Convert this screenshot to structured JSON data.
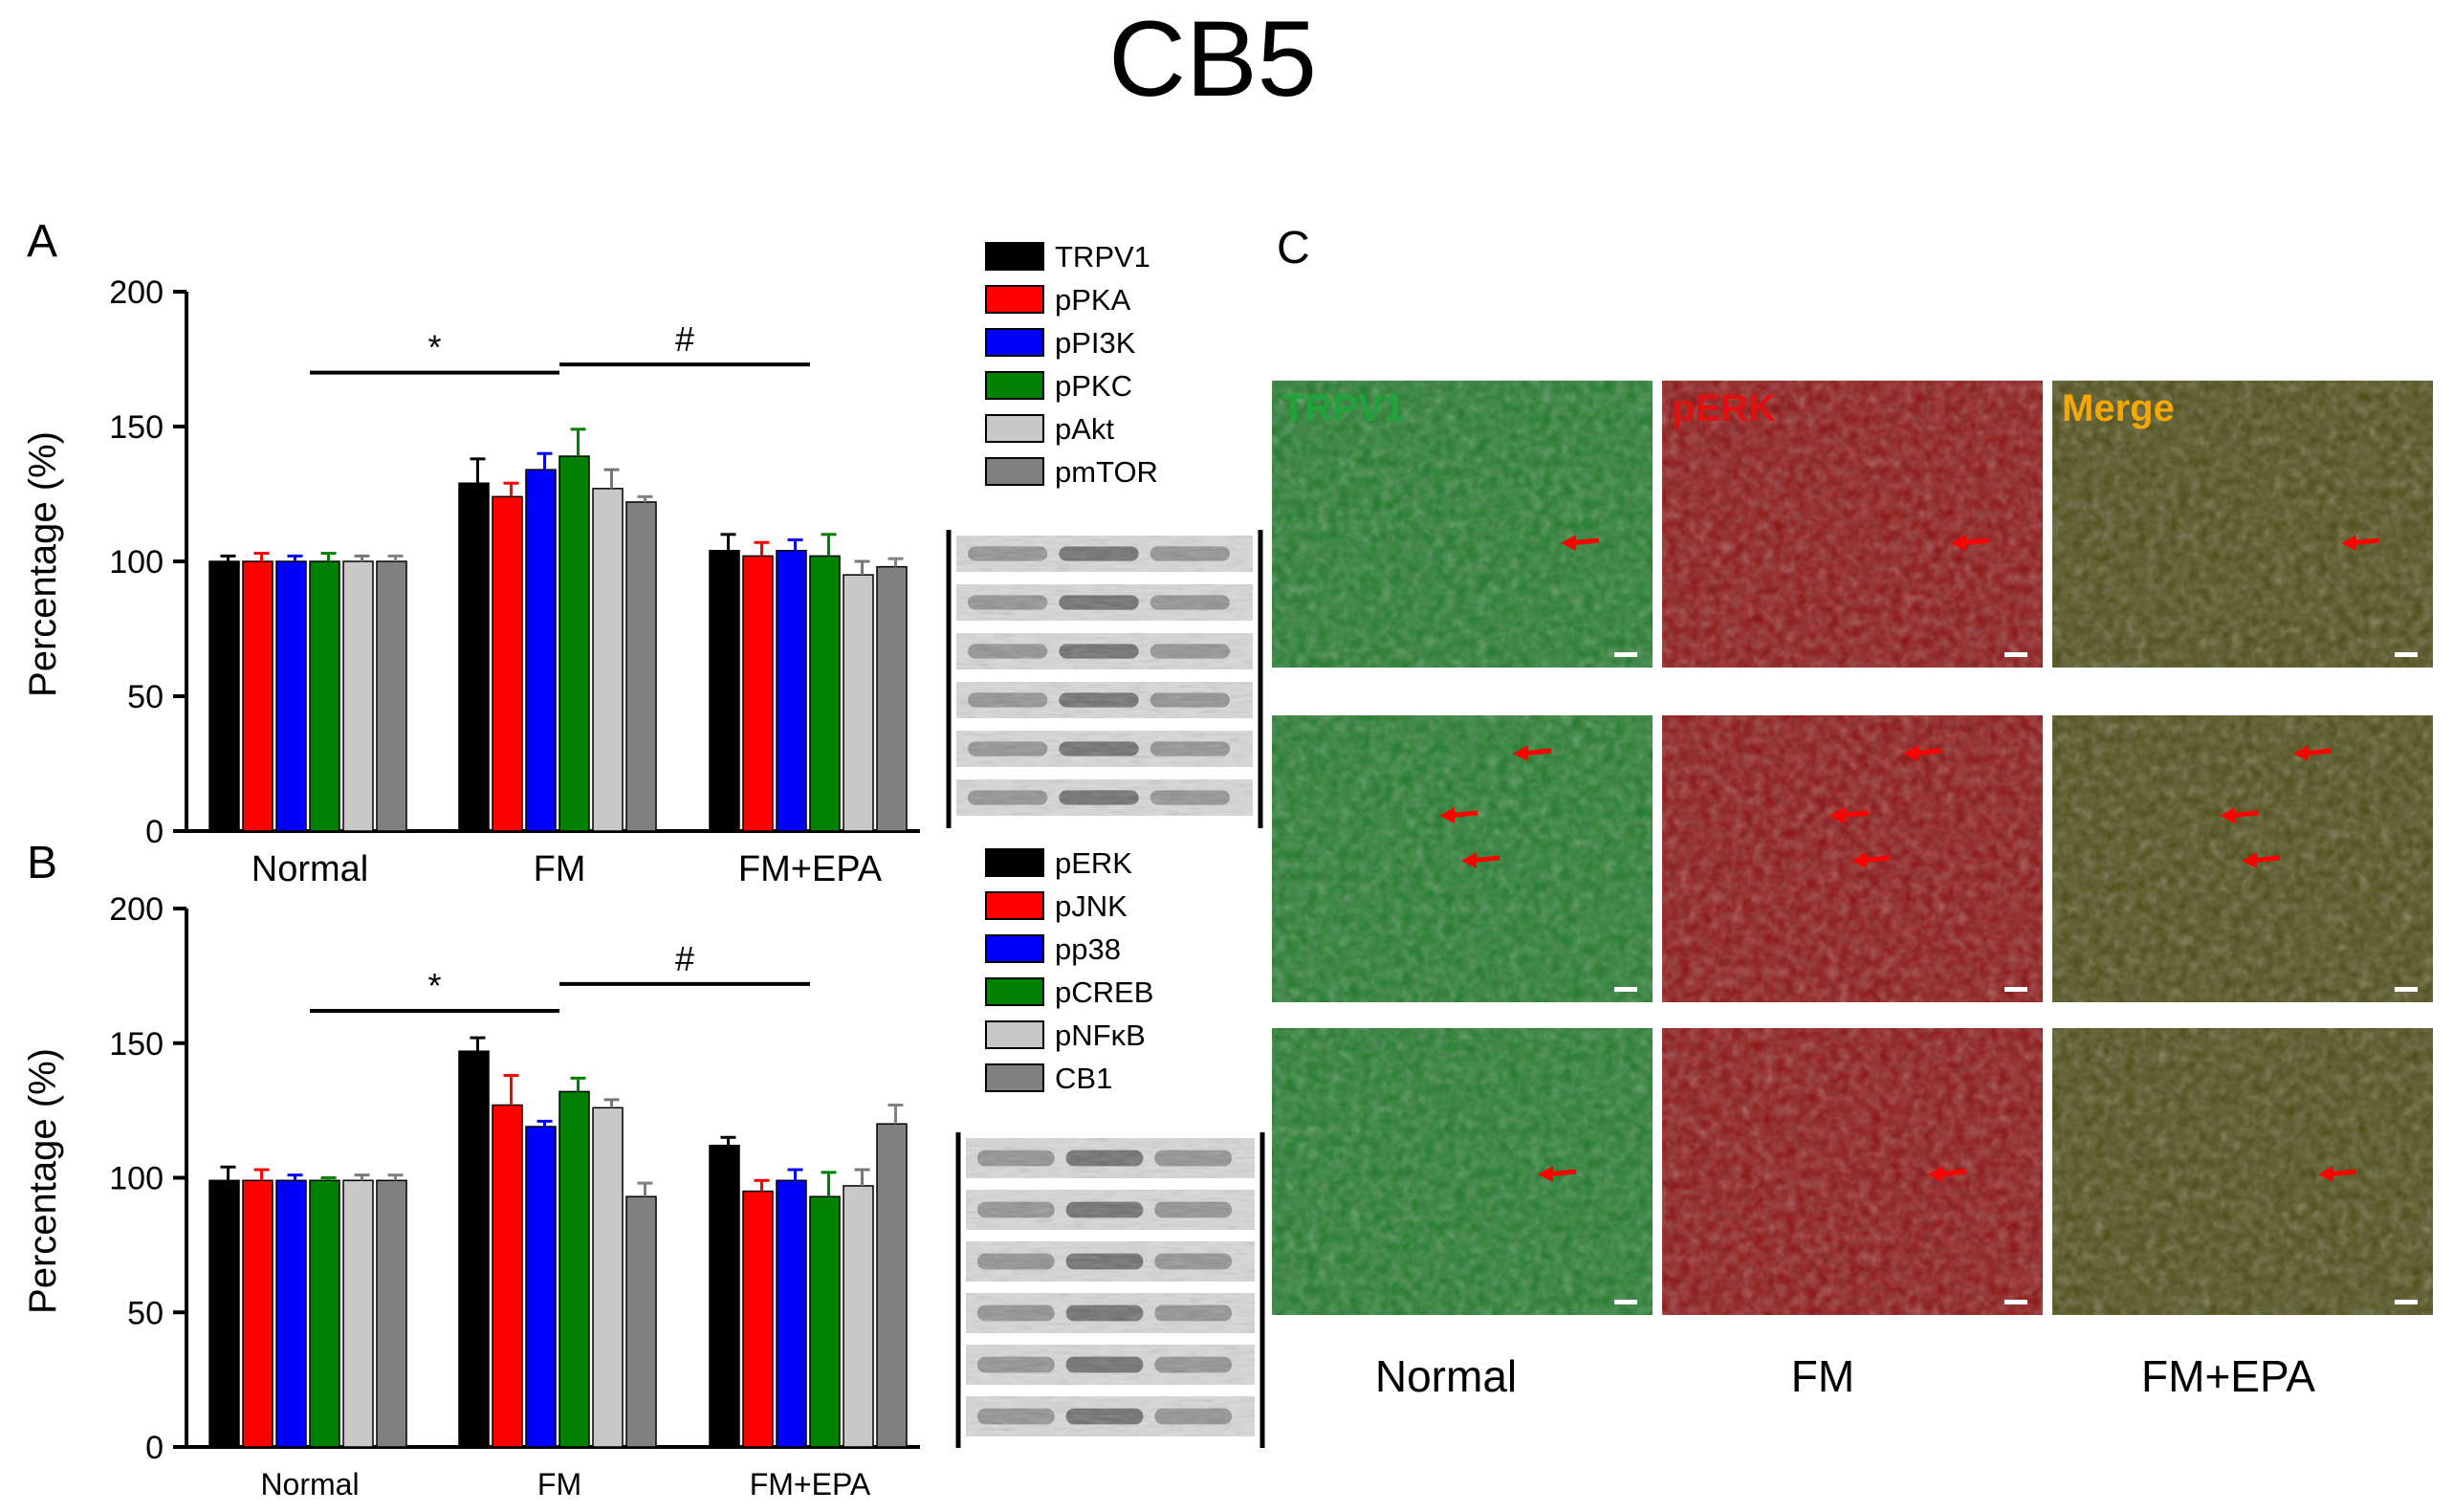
{
  "title": "CB5",
  "panels": {
    "a": "A",
    "b": "B",
    "c": "C"
  },
  "colors": {
    "series": [
      "#000000",
      "#ff0000",
      "#0000ff",
      "#008000",
      "#c8c8c8",
      "#808080"
    ],
    "green_channel": "#1e7a28",
    "red_channel": "#8c0f0f",
    "merge_channel": "#4a4a12",
    "channel_label_green": "#1fa33a",
    "channel_label_red": "#e01010",
    "channel_label_merge": "#f5a800",
    "arrow": "#ff0000"
  },
  "micro": {
    "channels": [
      "TRPV1",
      "pERK",
      "Merge"
    ],
    "row_labels": [
      "Normal",
      "FM",
      "FM+EPA"
    ]
  },
  "chart_data": [
    {
      "type": "bar",
      "panel": "A",
      "categories": [
        "Normal",
        "FM",
        "FM+EPA"
      ],
      "ylabel": "Percentage (%)",
      "ylim": [
        0,
        200
      ],
      "yticks": [
        0,
        50,
        100,
        150,
        200
      ],
      "series": [
        {
          "name": "TRPV1",
          "values": [
            100,
            129,
            104
          ],
          "errors": [
            2,
            9,
            6
          ]
        },
        {
          "name": "pPKA",
          "values": [
            100,
            124,
            102
          ],
          "errors": [
            3,
            5,
            5
          ]
        },
        {
          "name": "pPI3K",
          "values": [
            100,
            134,
            104
          ],
          "errors": [
            2,
            6,
            4
          ]
        },
        {
          "name": "pPKC",
          "values": [
            100,
            139,
            102
          ],
          "errors": [
            3,
            10,
            8
          ]
        },
        {
          "name": "pAkt",
          "values": [
            100,
            127,
            95
          ],
          "errors": [
            2,
            7,
            5
          ]
        },
        {
          "name": "pmTOR",
          "values": [
            100,
            122,
            98
          ],
          "errors": [
            2,
            2,
            3
          ]
        }
      ],
      "annotations": [
        {
          "text": "*",
          "from": "Normal",
          "to": "FM",
          "level": 170
        },
        {
          "text": "#",
          "from": "FM",
          "to": "FM+EPA",
          "level": 173
        }
      ]
    },
    {
      "type": "bar",
      "panel": "B",
      "categories": [
        "Normal",
        "FM",
        "FM+EPA"
      ],
      "ylabel": "Percentage (%)",
      "ylim": [
        0,
        200
      ],
      "yticks": [
        0,
        50,
        100,
        150,
        200
      ],
      "series": [
        {
          "name": "pERK",
          "values": [
            99,
            147,
            112
          ],
          "errors": [
            5,
            5,
            3
          ]
        },
        {
          "name": "pJNK",
          "values": [
            99,
            127,
            95
          ],
          "errors": [
            4,
            11,
            4
          ]
        },
        {
          "name": "pp38",
          "values": [
            99,
            119,
            99
          ],
          "errors": [
            2,
            2,
            4
          ]
        },
        {
          "name": "pCREB",
          "values": [
            99,
            132,
            93
          ],
          "errors": [
            1,
            5,
            9
          ]
        },
        {
          "name": "pNFκB",
          "values": [
            99,
            126,
            97
          ],
          "errors": [
            2,
            3,
            6
          ]
        },
        {
          "name": "CB1",
          "values": [
            99,
            93,
            120
          ],
          "errors": [
            2,
            5,
            7
          ]
        }
      ],
      "annotations": [
        {
          "text": "*",
          "from": "Normal",
          "to": "FM",
          "level": 162
        },
        {
          "text": "#",
          "from": "FM",
          "to": "FM+EPA",
          "level": 172
        }
      ]
    }
  ]
}
